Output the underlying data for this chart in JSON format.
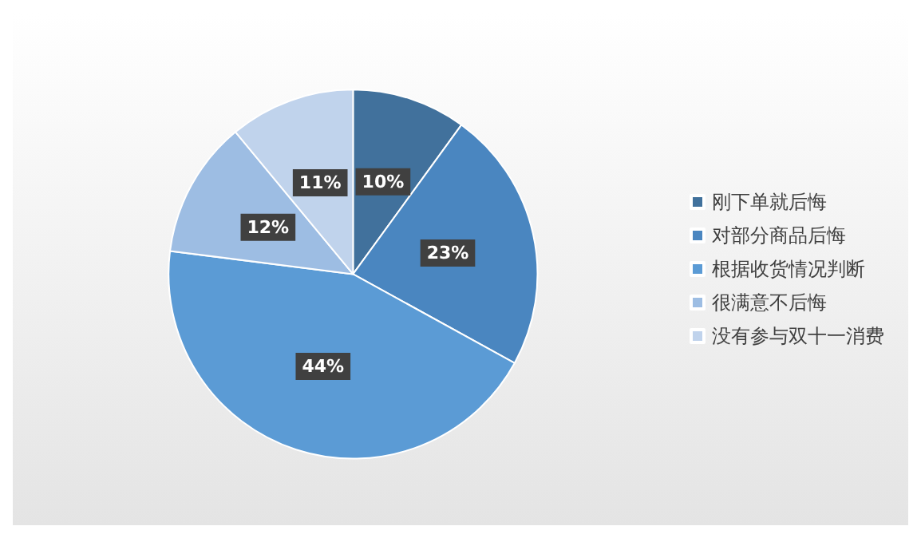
{
  "chart_data": {
    "type": "pie",
    "categories": [
      "刚下单就后悔",
      "对部分商品后悔",
      "根据收货情况判断",
      "很满意不后悔",
      "没有参与双十一消费"
    ],
    "values": [
      10,
      23,
      44,
      12,
      11
    ],
    "colors": [
      "#41719c",
      "#4a86c0",
      "#5b9bd5",
      "#9dbde3",
      "#c0d3ec"
    ],
    "value_labels": [
      "10%",
      "23%",
      "44%",
      "12%",
      "11%"
    ],
    "legend": "right"
  }
}
